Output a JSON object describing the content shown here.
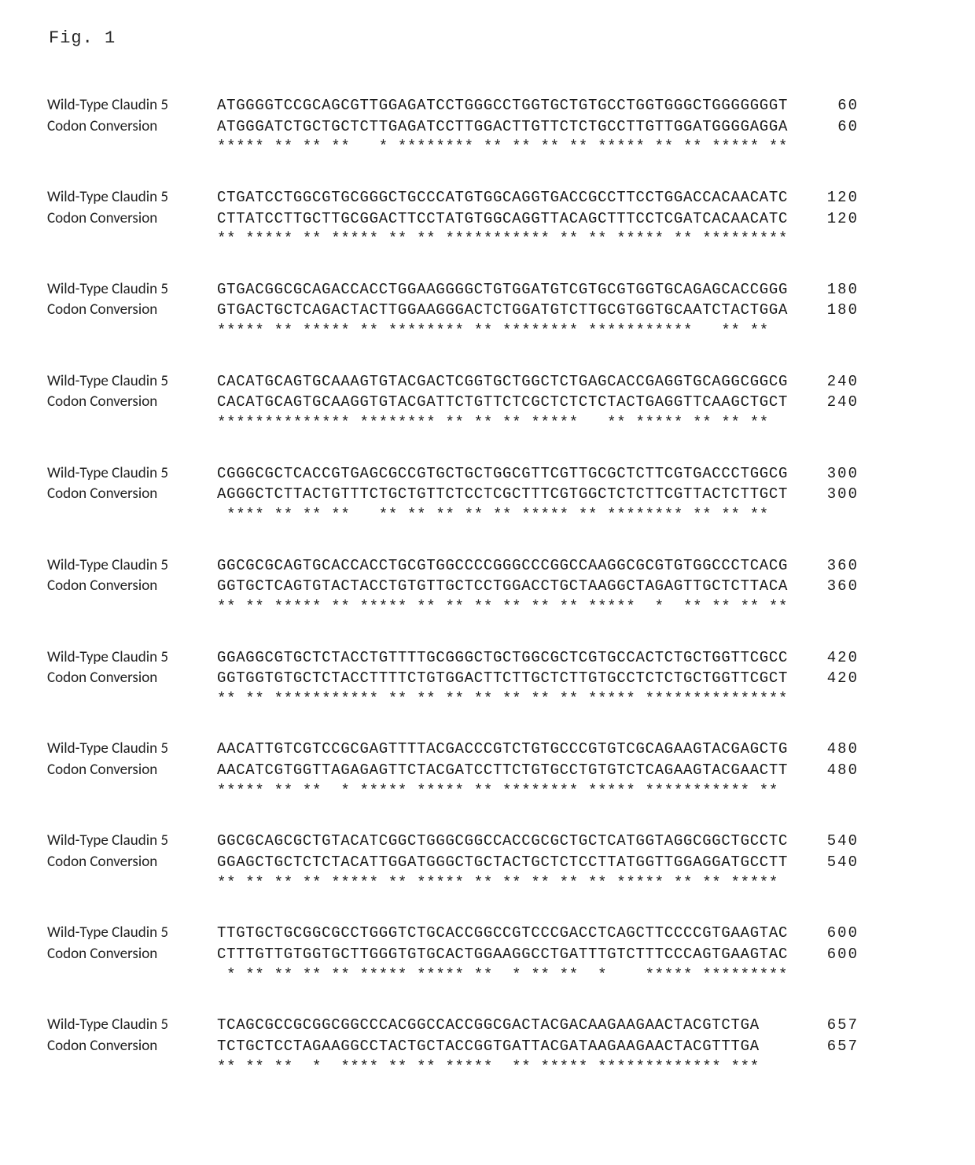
{
  "figure_title": "Fig. 1",
  "labels": {
    "wt": "Wild-Type Claudin 5",
    "cc": "Codon Conversion"
  },
  "alignment": [
    {
      "wt": "ATGGGGTCCGCAGCGTTGGAGATCCTGGGCCTGGTGCTGTGCCTGGTGGGCTGGGGGGGT",
      "cc": "ATGGGATCTGCTGCTCTTGAGATCCTTGGACTTGTTCTCTGCCTTGTTGGATGGGGAGGA",
      "star": "***** ** ** **   * ******** ** ** ** ** ***** ** ** ***** **",
      "wtpos": 60,
      "ccpos": 60
    },
    {
      "wt": "CTGATCCTGGCGTGCGGGCTGCCCATGTGGCAGGTGACCGCCTTCCTGGACCACAACATC",
      "cc": "CTTATCCTTGCTTGCGGACTTCCTATGTGGCAGGTTACAGCTTTCCTCGATCACAACATC",
      "star": "** ***** ** ***** ** ** *********** ** ** ***** ** *********",
      "wtpos": 120,
      "ccpos": 120
    },
    {
      "wt": "GTGACGGCGCAGACCACCTGGAAGGGGCTGTGGATGTCGTGCGTGGTGCAGAGCACCGGG",
      "cc": "GTGACTGCTCAGACTACTTGGAAGGGACTCTGGATGTCTTGCGTGGTGCAATCTACTGGA",
      "star": "***** ** ***** ** ******** ** ******** ***********   ** ** ",
      "wtpos": 180,
      "ccpos": 180
    },
    {
      "wt": "CACATGCAGTGCAAAGTGTACGACTCGGTGCTGGCTCTGAGCACCGAGGTGCAGGCGGCG",
      "cc": "CACATGCAGTGCAAGGTGTACGATTCTGTTCTCGCTCTCTCTACTGAGGTTCAAGCTGCT",
      "star": "************** ******** ** ** ** *****   ** ***** ** ** ** ",
      "wtpos": 240,
      "ccpos": 240
    },
    {
      "wt": "CGGGCGCTCACCGTGAGCGCCGTGCTGCTGGCGTTCGTTGCGCTCTTCGTGACCCTGGCG",
      "cc": "AGGGCTCTTACTGTTTCTGCTGTTCTCCTCGCTTTCGTGGCTCTCTTCGTTACTCTTGCT",
      "star": " **** ** ** **   ** ** ** ** ** ***** ** ******** ** ** ** ",
      "wtpos": 300,
      "ccpos": 300
    },
    {
      "wt": "GGCGCGCAGTGCACCACCTGCGTGGCCCCGGGCCCGGCCAAGGCGCGTGTGGCCCTCACG",
      "cc": "GGTGCTCAGTGTACTACCTGTGTTGCTCCTGGACCTGCTAAGGCTAGAGTTGCTCTTACA",
      "star": "** ** ***** ** ***** ** ** ** ** ** ** *****  *  ** ** ** **",
      "wtpos": 360,
      "ccpos": 360
    },
    {
      "wt": "GGAGGCGTGCTCTACCTGTTTTGCGGGCTGCTGGCGCTCGTGCCACTCTGCTGGTTCGCC",
      "cc": "GGTGGTGTGCTCTACCTTTTCTGTGGACTTCTTGCTCTTGTGCCTCTCTGCTGGTTCGCT",
      "star": "** ** *********** ** ** ** ** ** ** ** ***** ***************",
      "wtpos": 420,
      "ccpos": 420
    },
    {
      "wt": "AACATTGTCGTCCGCGAGTTTTACGACCCGTCTGTGCCCGTGTCGCAGAAGTACGAGCTG",
      "cc": "AACATCGTGGTTAGAGAGTTCTACGATCCTTCTGTGCCTGTGTCTCAGAAGTACGAACTT",
      "star": "***** ** **  * ***** ***** ** ******** ***** *********** ** ",
      "wtpos": 480,
      "ccpos": 480
    },
    {
      "wt": "GGCGCAGCGCTGTACATCGGCTGGGCGGCCACCGCGCTGCTCATGGTAGGCGGCTGCCTC",
      "cc": "GGAGCTGCTCTCTACATTGGATGGGCTGCTACTGCTCTCCTTATGGTTGGAGGATGCCTT",
      "star": "** ** ** ** ***** ** ***** ** ** ** ** ** ***** ** ** *****",
      "wtpos": 540,
      "ccpos": 540
    },
    {
      "wt": "TTGTGCTGCGGCGCCTGGGTCTGCACCGGCCGTCCCGACCTCAGCTTCCCCGTGAAGTAC",
      "cc": "CTTTGTTGTGGTGCTTGGGTGTGCACTGGAAGGCCTGATTTGTCTTTCCCAGTGAAGTAC",
      "star": " * ** ** ** ** ***** ***** **  * ** **  *    ***** *********",
      "wtpos": 600,
      "ccpos": 600
    },
    {
      "wt": "TCAGCGCCGCGGCGGCCCACGGCCACCGGCGACTACGACAAGAAGAACTACGTCTGA",
      "cc": "TCTGCTCCTAGAAGGCCTACTGCTACCGGTGATTACGATAAGAAGAACTACGTTTGA",
      "star": "** ** **  *  **** ** ** *****  ** ***** ************* ***",
      "wtpos": 657,
      "ccpos": 657
    }
  ]
}
